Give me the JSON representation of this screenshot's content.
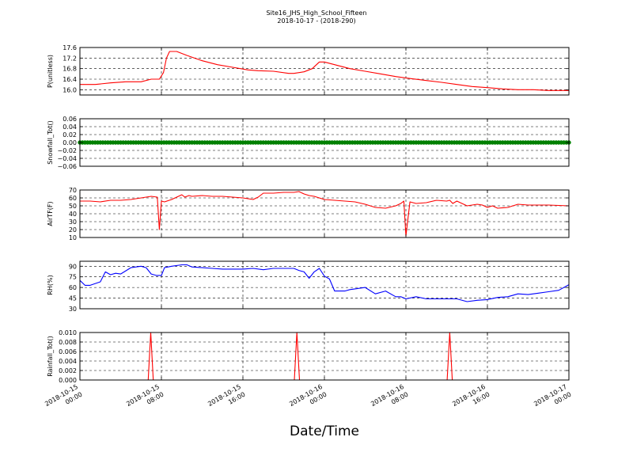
{
  "title": "Site16_JHS_High_School_Fifteen",
  "subtitle": "2018-10-17 - (2018-290)",
  "xlabel": "Date/Time",
  "x_ticks": [
    {
      "line1": "2018-10-15",
      "line2": "00:00"
    },
    {
      "line1": "2018-10-15",
      "line2": "08:00"
    },
    {
      "line1": "2018-10-15",
      "line2": "16:00"
    },
    {
      "line1": "2018-10-16",
      "line2": "00:00"
    },
    {
      "line1": "2018-10-16",
      "line2": "08:00"
    },
    {
      "line1": "2018-10-16",
      "line2": "16:00"
    },
    {
      "line1": "2018-10-17",
      "line2": "00:00"
    }
  ],
  "x_range_hours": [
    0,
    48
  ],
  "chart_data": [
    {
      "type": "line",
      "ylabel": "P(unitless)",
      "color": "#ff0000",
      "ylim": [
        15.8,
        17.6
      ],
      "yticks": [
        16.0,
        16.4,
        16.8,
        17.2,
        17.6
      ],
      "ytick_labels": [
        "16.0",
        "16.4",
        "16.8",
        "17.2",
        "17.6"
      ],
      "grid": true,
      "x_hours": [
        0,
        1.5,
        3,
        4.5,
        6,
        7,
        7.8,
        8.2,
        8.5,
        8.8,
        9.5,
        10.5,
        12,
        13.5,
        15,
        16.5,
        17.5,
        19,
        20.5,
        21,
        22,
        22.8,
        23.5,
        24,
        25,
        26.5,
        28,
        29.5,
        31,
        32.5,
        34,
        35.5,
        37,
        38.5,
        40,
        41.5,
        43,
        44.5,
        46,
        48
      ],
      "values": [
        16.2,
        16.2,
        16.26,
        16.3,
        16.3,
        16.4,
        16.4,
        16.65,
        17.2,
        17.45,
        17.45,
        17.3,
        17.1,
        16.95,
        16.85,
        16.75,
        16.72,
        16.7,
        16.62,
        16.62,
        16.68,
        16.8,
        17.05,
        17.05,
        16.95,
        16.8,
        16.7,
        16.6,
        16.5,
        16.42,
        16.35,
        16.28,
        16.2,
        16.12,
        16.08,
        16.03,
        16.0,
        16.0,
        15.97,
        15.97
      ]
    },
    {
      "type": "scatter",
      "ylabel": "Snowfall_Tot()",
      "color": "#008000",
      "ylim": [
        -0.06,
        0.06
      ],
      "yticks": [
        -0.06,
        -0.04,
        -0.02,
        0.0,
        0.02,
        0.04,
        0.06
      ],
      "ytick_labels": [
        "−0.06",
        "−0.04",
        "−0.02",
        "0.00",
        "0.02",
        "0.04",
        "0.06"
      ],
      "grid": true,
      "constant_value": 0.0,
      "x_step_hours": 0.25
    },
    {
      "type": "line",
      "ylabel": "AirTF(F)",
      "color": "#ff0000",
      "ylim": [
        10,
        70
      ],
      "yticks": [
        10,
        20,
        30,
        40,
        50,
        60,
        70
      ],
      "ytick_labels": [
        "10",
        "20",
        "30",
        "40",
        "50",
        "60",
        "70"
      ],
      "grid": true,
      "x_hours": [
        0,
        1,
        2,
        3,
        4,
        5,
        6,
        7,
        7.6,
        7.8,
        8.0,
        8.3,
        9,
        10,
        10.3,
        10.7,
        11,
        12,
        13,
        14,
        15,
        16,
        17,
        17.5,
        18,
        19,
        20,
        21,
        21.5,
        22,
        22.5,
        23,
        24,
        25,
        26,
        27,
        28,
        29,
        30,
        31,
        31.5,
        31.8,
        32.0,
        32.4,
        33,
        34,
        35,
        36,
        36.3,
        36.6,
        37,
        38,
        39,
        39.5,
        40,
        40.5,
        41,
        42,
        43,
        44,
        46,
        48
      ],
      "values": [
        56,
        56,
        55,
        57,
        57,
        58,
        60,
        62,
        61,
        20,
        56,
        55,
        58,
        64,
        61,
        63,
        62,
        63,
        62,
        62,
        61,
        60,
        58,
        61,
        66,
        66,
        67,
        67,
        68,
        65,
        63,
        62,
        58,
        57,
        56,
        55,
        52,
        48,
        47,
        50,
        53,
        56,
        12,
        55,
        53,
        54,
        57,
        56,
        57,
        53,
        56,
        50,
        52,
        51,
        48,
        50,
        47,
        48,
        52,
        51,
        51,
        50
      ]
    },
    {
      "type": "line",
      "ylabel": "RH(%)",
      "color": "#0000ff",
      "ylim": [
        30,
        97
      ],
      "yticks": [
        30,
        45,
        60,
        75,
        90
      ],
      "ytick_labels": [
        "30",
        "45",
        "60",
        "75",
        "90"
      ],
      "grid": true,
      "x_hours": [
        0,
        0.5,
        1,
        2,
        2.5,
        3,
        3.5,
        4,
        5,
        6,
        6.5,
        7,
        7.5,
        8,
        8.3,
        9,
        10,
        10.5,
        11,
        12,
        13,
        14,
        15,
        16,
        17,
        18,
        19,
        20,
        21,
        21.5,
        22,
        22.5,
        23,
        23.5,
        24,
        24.5,
        25,
        26,
        26.5,
        27,
        28,
        29,
        30,
        31,
        31.5,
        32,
        33,
        34,
        35,
        36,
        37,
        38,
        39,
        40,
        41,
        42,
        43,
        44,
        45,
        46,
        47,
        48
      ],
      "values": [
        70,
        63,
        63,
        68,
        82,
        78,
        80,
        79,
        88,
        90,
        88,
        79,
        77,
        77,
        88,
        90,
        92,
        92,
        89,
        88,
        87,
        86,
        86,
        86,
        87,
        85,
        87,
        87,
        87,
        84,
        82,
        73,
        82,
        87,
        76,
        72,
        55,
        55,
        57,
        58,
        60,
        51,
        55,
        47,
        47,
        44,
        47,
        44,
        44,
        44,
        44,
        40,
        42,
        43,
        46,
        47,
        51,
        50,
        52,
        54,
        56,
        64
      ]
    },
    {
      "type": "line",
      "ylabel": "Rainfall_Tot()",
      "color": "#ff0000",
      "ylim": [
        0,
        0.01
      ],
      "yticks": [
        0.0,
        0.002,
        0.004,
        0.006,
        0.008,
        0.01
      ],
      "ytick_labels": [
        "0.000",
        "0.002",
        "0.004",
        "0.006",
        "0.008",
        "0.010"
      ],
      "grid": true,
      "x_hours": [
        0,
        6.7,
        6.95,
        7.2,
        21.05,
        21.3,
        21.55,
        36.05,
        36.3,
        36.55,
        48
      ],
      "values": [
        0,
        0,
        0.01,
        0,
        0,
        0.01,
        0,
        0,
        0.01,
        0,
        0
      ]
    }
  ]
}
